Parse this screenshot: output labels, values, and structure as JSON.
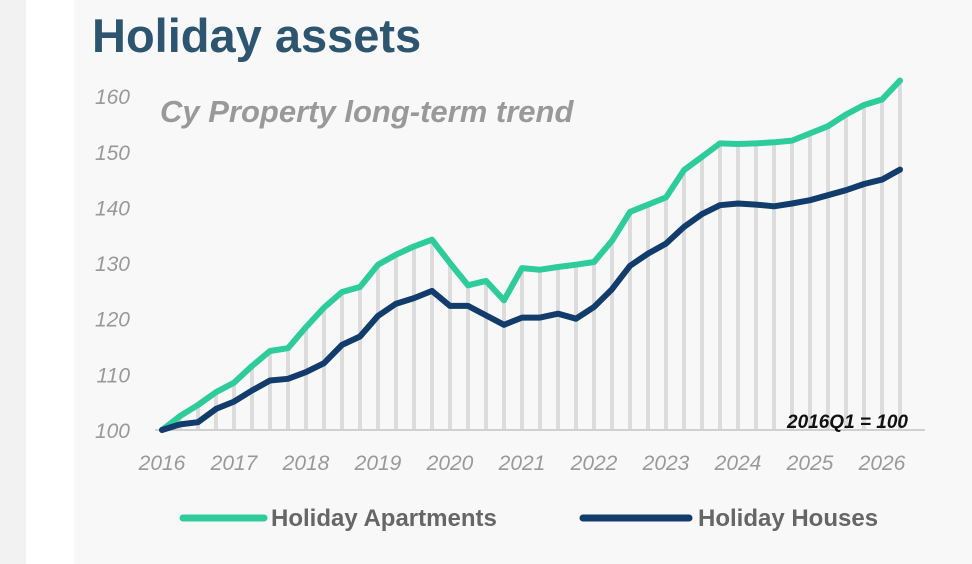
{
  "page": {
    "title": "Holiday assets"
  },
  "chart_data": {
    "type": "line",
    "subtitle": "Cy Property long-term trend",
    "annotation": "2016Q1 = 100",
    "xlabel": "",
    "ylabel": "",
    "x_ticks": [
      "2016",
      "2017",
      "2018",
      "2019",
      "2020",
      "2021",
      "2022",
      "2023",
      "2024",
      "2025",
      "2026"
    ],
    "y_ticks": [
      100,
      110,
      120,
      130,
      140,
      150,
      160
    ],
    "ylim": [
      100,
      162
    ],
    "xlim": [
      2016.0,
      2026.5
    ],
    "x": [
      2016.0,
      2016.25,
      2016.5,
      2016.75,
      2017.0,
      2017.25,
      2017.5,
      2017.75,
      2018.0,
      2018.25,
      2018.5,
      2018.75,
      2019.0,
      2019.25,
      2019.5,
      2019.75,
      2020.0,
      2020.25,
      2020.5,
      2020.75,
      2021.0,
      2021.25,
      2021.5,
      2021.75,
      2022.0,
      2022.25,
      2022.5,
      2022.75,
      2023.0,
      2023.25,
      2023.5,
      2023.75,
      2024.0,
      2024.25,
      2024.5,
      2024.75,
      2025.0,
      2025.25,
      2025.5,
      2025.75,
      2026.0,
      2026.25
    ],
    "grid": "vertical gridlines at each quarter",
    "legend_position": "bottom",
    "series": [
      {
        "name": "Holiday Apartments",
        "color": "#2ecc9a",
        "values": [
          100,
          102.5,
          104.5,
          106.8,
          108.5,
          111.5,
          114.2,
          114.7,
          118.5,
          122,
          124.8,
          125.7,
          129.7,
          131.5,
          133,
          134.2,
          130,
          126,
          126.8,
          123.3,
          129.1,
          128.8,
          129.3,
          129.7,
          130.2,
          134,
          139.2,
          140.5,
          141.8,
          146.7,
          149.1,
          151.5,
          151.4,
          151.5,
          151.7,
          152,
          153.3,
          154.6,
          156.7,
          158.4,
          159.4,
          162.8
        ]
      },
      {
        "name": "Holiday Houses",
        "color": "#123c6b",
        "values": [
          100,
          101,
          101.4,
          103.8,
          105.1,
          107.1,
          108.9,
          109.2,
          110.4,
          112,
          115.3,
          116.8,
          120.5,
          122.7,
          123.7,
          125,
          122.3,
          122.3,
          120.6,
          118.9,
          120.2,
          120.2,
          120.9,
          120,
          122.1,
          125.3,
          129.5,
          131.7,
          133.5,
          136.5,
          138.8,
          140.4,
          140.7,
          140.5,
          140.2,
          140.7,
          141.3,
          142.2,
          143.1,
          144.2,
          145,
          146.8
        ]
      }
    ]
  }
}
